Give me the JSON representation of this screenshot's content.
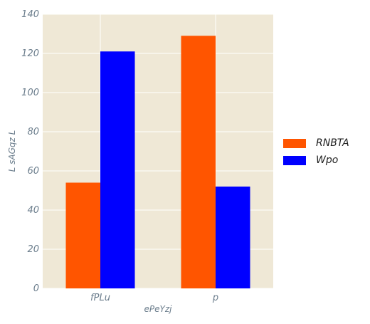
{
  "chart_data": {
    "type": "bar",
    "title": "",
    "xlabel": "ePeYzj",
    "ylabel": "L sAGqz L",
    "categories": [
      "fPLu",
      "p"
    ],
    "series": [
      {
        "name": "RNBTA",
        "values": [
          54,
          129
        ],
        "color": "#ff5500"
      },
      {
        "name": "Wpo",
        "values": [
          121,
          52
        ],
        "color": "#0000ff"
      }
    ],
    "ylim": [
      0,
      140
    ],
    "yticks": [
      0,
      20,
      40,
      60,
      80,
      100,
      120,
      140
    ],
    "grid": true,
    "legend_position": "right",
    "background_color": "#efe8d6"
  }
}
